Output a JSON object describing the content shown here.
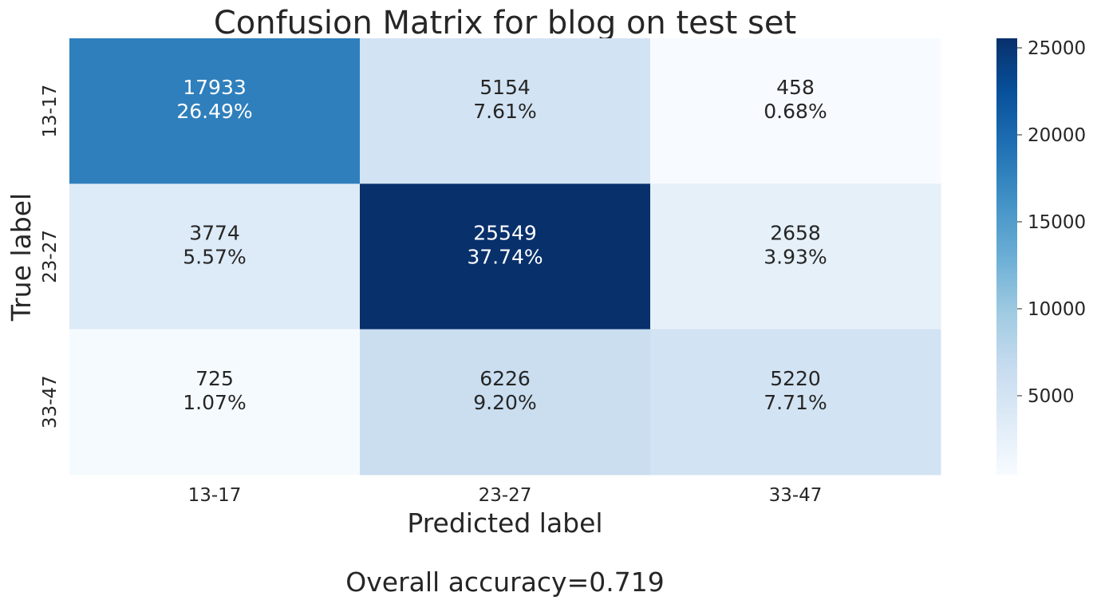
{
  "chart_data": {
    "type": "heatmap",
    "title": "Confusion Matrix for blog on test set",
    "xlabel": "Predicted label",
    "ylabel": "True label",
    "x_categories": [
      "13-17",
      "23-27",
      "33-47"
    ],
    "y_categories": [
      "13-17",
      "23-27",
      "33-47"
    ],
    "values": [
      [
        17933,
        5154,
        458
      ],
      [
        3774,
        25549,
        2658
      ],
      [
        725,
        6226,
        5220
      ]
    ],
    "percentages": [
      [
        "26.49%",
        "7.61%",
        "0.68%"
      ],
      [
        "5.57%",
        "37.74%",
        "3.93%"
      ],
      [
        "1.07%",
        "9.20%",
        "7.71%"
      ]
    ],
    "colormap": "Blues",
    "colorbar": {
      "ticks": [
        5000,
        10000,
        15000,
        20000,
        25000
      ],
      "tick_labels": [
        "5000",
        "10000",
        "15000",
        "20000",
        "25000"
      ]
    },
    "footer": "Overall accuracy=0.719"
  }
}
